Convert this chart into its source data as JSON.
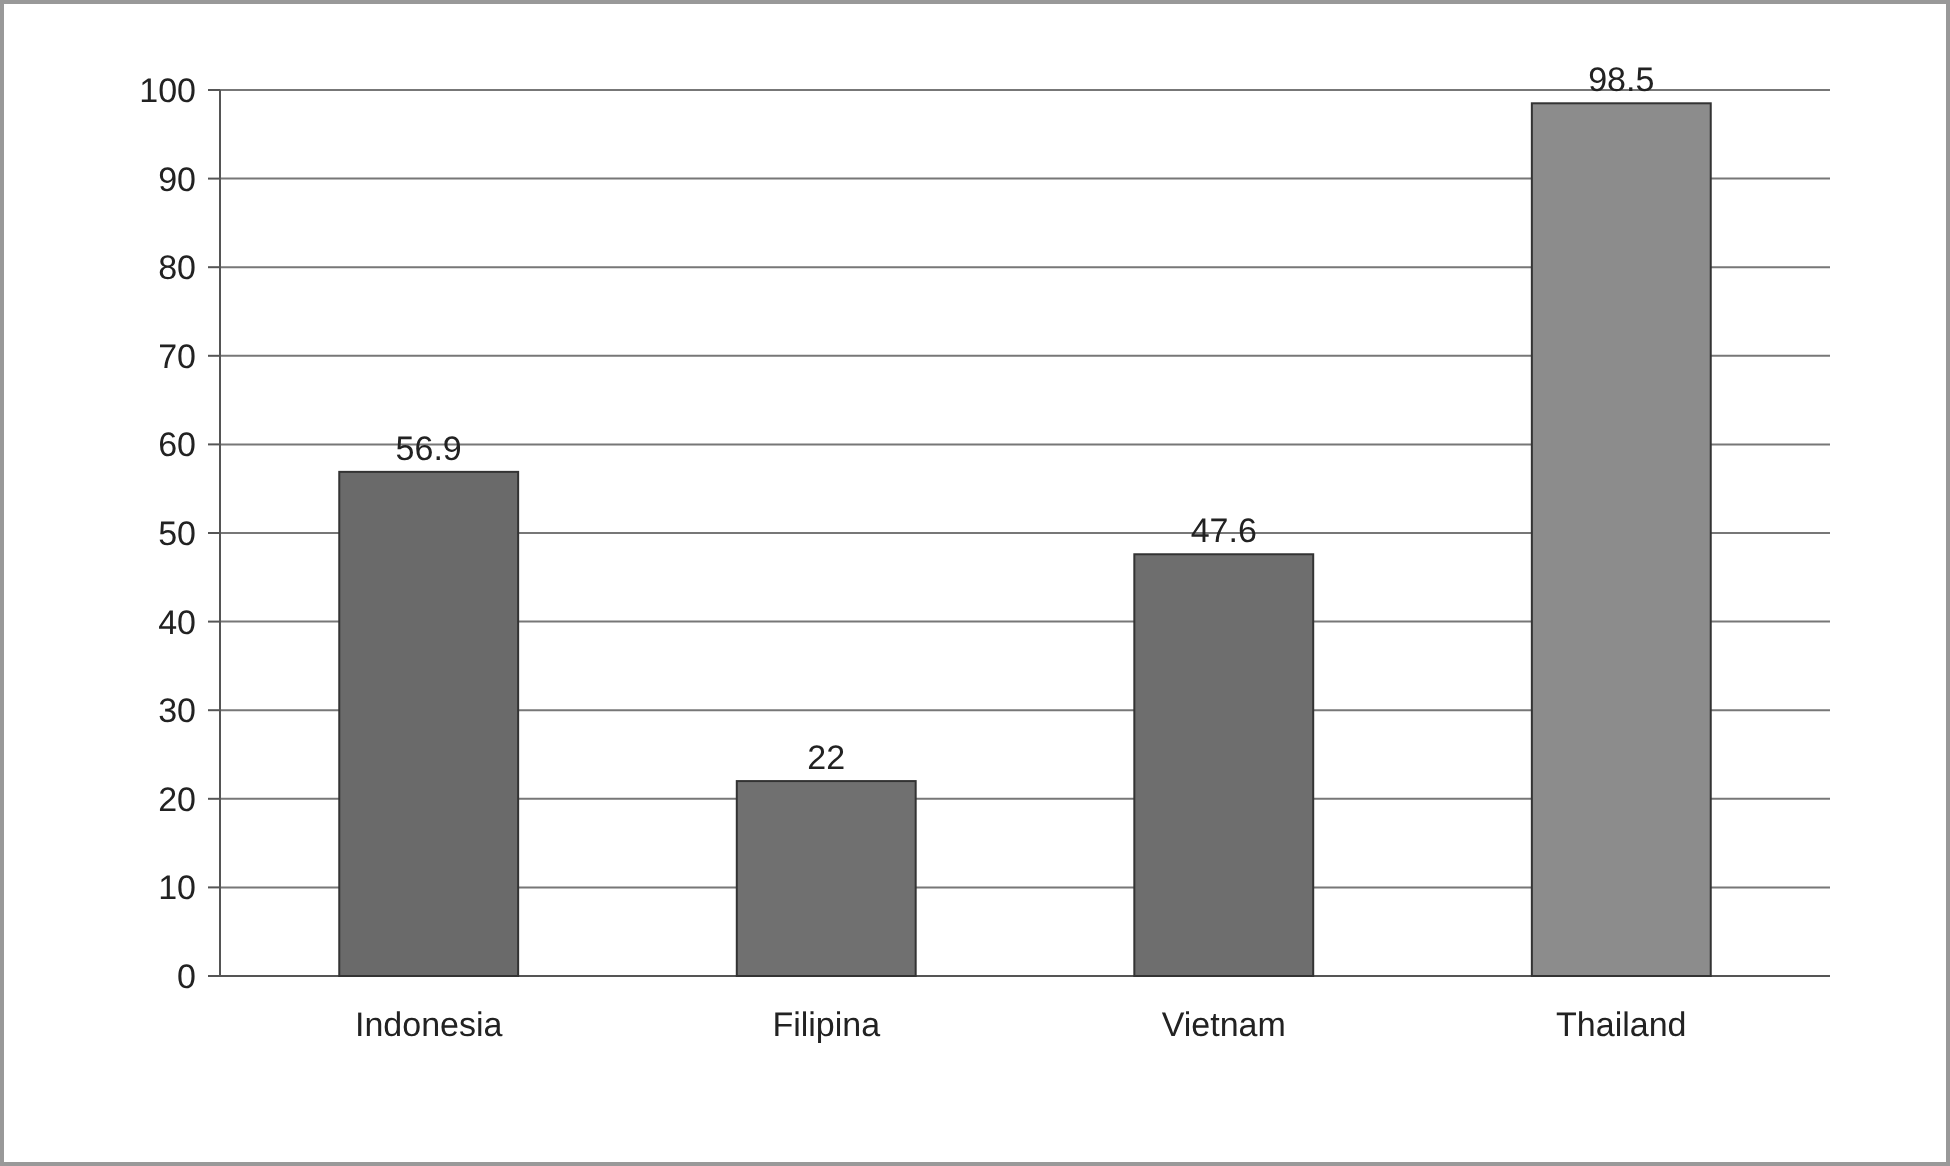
{
  "chart_data": {
    "type": "bar",
    "categories": [
      "Indonesia",
      "Filipina",
      "Vietnam",
      "Thailand"
    ],
    "values": [
      56.9,
      22,
      47.6,
      98.5
    ],
    "colors": [
      "#6a6a6a",
      "#707070",
      "#6e6e6e",
      "#8c8c8c"
    ],
    "ylim": [
      0,
      100
    ],
    "yticks": [
      0,
      10,
      20,
      30,
      40,
      50,
      60,
      70,
      80,
      90,
      100
    ],
    "grid": "y",
    "data_labels": true
  }
}
